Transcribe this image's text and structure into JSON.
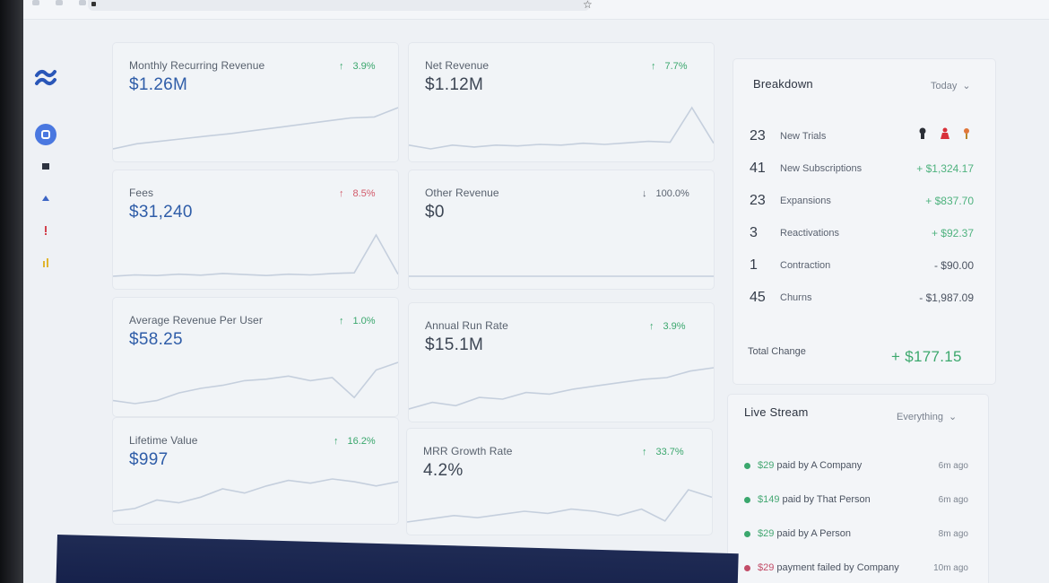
{
  "sidebar": {
    "logo": "logo-icon",
    "items": [
      "dashboard-icon",
      "folder-icon",
      "user-icon",
      "alert-icon",
      "chart-icon"
    ]
  },
  "metrics": [
    {
      "label": "Monthly Recurring Revenue",
      "value": "$1.26M",
      "change": "3.9%",
      "direction": "up",
      "sparkline": [
        10,
        11,
        11.5,
        12,
        12.5,
        13,
        13.6,
        14.2,
        14.8,
        15.4,
        16,
        16.2,
        18
      ]
    },
    {
      "label": "Net Revenue",
      "value": "$1.12M",
      "change": "7.7%",
      "direction": "up",
      "sparkline": [
        10,
        9,
        10,
        9.5,
        10,
        9.8,
        10.2,
        10,
        10.5,
        10.2,
        10.6,
        11,
        10.8,
        20,
        10.5
      ]
    },
    {
      "label": "Fees",
      "value": "$31,240",
      "change": "8.5%",
      "direction": "up",
      "change_color": "#d25a6a",
      "sparkline": [
        10,
        10.4,
        10.2,
        10.6,
        10.3,
        10.8,
        10.5,
        10.2,
        10.6,
        10.4,
        10.8,
        11,
        22,
        10.6
      ]
    },
    {
      "label": "Other Revenue",
      "value": "$0",
      "change": "100.0%",
      "direction": "down",
      "sparkline": [
        10,
        10,
        10,
        10,
        10,
        10,
        10,
        10,
        10,
        10
      ]
    },
    {
      "label": "Average Revenue Per User",
      "value": "$58.25",
      "change": "1.0%",
      "direction": "up",
      "sparkline": [
        10,
        9.6,
        10,
        11,
        11.6,
        12,
        12.6,
        12.8,
        13.2,
        12.6,
        13,
        10.4,
        14,
        15
      ]
    },
    {
      "label": "Annual Run Rate",
      "value": "$15.1M",
      "change": "3.9%",
      "direction": "up",
      "sparkline": [
        10,
        10.8,
        10.4,
        11.4,
        11.2,
        12,
        11.8,
        12.4,
        12.8,
        13.2,
        13.6,
        13.8,
        14.6,
        15
      ]
    },
    {
      "label": "Lifetime Value",
      "value": "$997",
      "change": "16.2%",
      "direction": "up",
      "sparkline": [
        10,
        10.4,
        11.6,
        11.2,
        12,
        13.2,
        12.6,
        13.6,
        14.4,
        14,
        14.6,
        14.2,
        13.6,
        14.2
      ]
    },
    {
      "label": "MRR Growth Rate",
      "value": "4.2%",
      "change": "33.7%",
      "direction": "up",
      "sparkline": [
        10,
        10.6,
        11.2,
        10.8,
        11.4,
        12,
        11.6,
        12.4,
        12,
        11.2,
        12.4,
        10.2,
        16,
        14.6
      ]
    }
  ],
  "breakdown": {
    "title": "Breakdown",
    "range": "Today",
    "rows": [
      {
        "count": "23",
        "label": "New Trials",
        "amount": ""
      },
      {
        "count": "41",
        "label": "New Subscriptions",
        "amount": "+ $1,324.17",
        "kind": "pos"
      },
      {
        "count": "23",
        "label": "Expansions",
        "amount": "+ $837.70",
        "kind": "pos"
      },
      {
        "count": "3",
        "label": "Reactivations",
        "amount": "+ $92.37",
        "kind": "pos"
      },
      {
        "count": "1",
        "label": "Contraction",
        "amount": "- $90.00",
        "kind": "neg"
      },
      {
        "count": "45",
        "label": "Churns",
        "amount": "- $1,987.09",
        "kind": "neg"
      }
    ],
    "trial_icons": [
      "avatar-icon",
      "bell-icon",
      "pin-icon"
    ],
    "total_label": "Total Change",
    "total_value": "+ $177.15"
  },
  "live_stream": {
    "title": "Live Stream",
    "filter": "Everything",
    "events": [
      {
        "amount": "$29",
        "text": "paid by A Company",
        "time": "6m ago",
        "status": "success"
      },
      {
        "amount": "$149",
        "text": "paid by That Person",
        "time": "6m ago",
        "status": "success"
      },
      {
        "amount": "$29",
        "text": "paid by A Person",
        "time": "8m ago",
        "status": "success"
      },
      {
        "amount": "$29",
        "text": "payment failed by Company",
        "time": "10m ago",
        "status": "failed"
      }
    ]
  },
  "colors": {
    "accent": "#2f5da8",
    "positive": "#3aa76d",
    "negative": "#d25a6a",
    "fail": "#c24d68"
  }
}
